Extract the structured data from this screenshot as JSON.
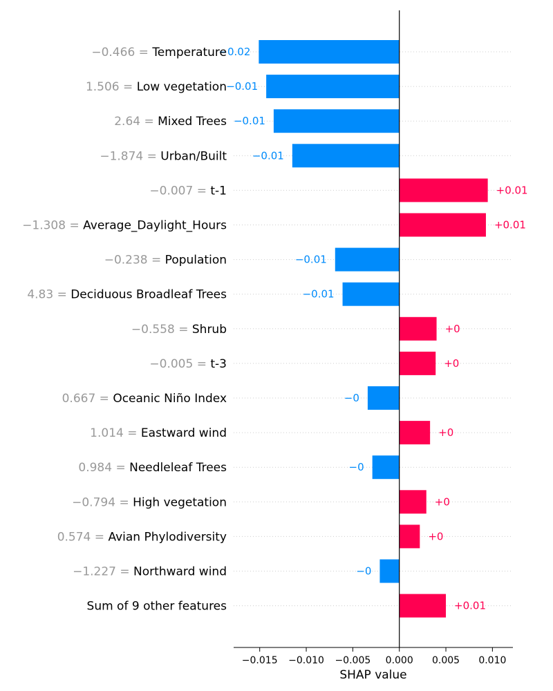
{
  "chart_data": {
    "type": "bar",
    "orientation": "horizontal",
    "xlabel": "SHAP value",
    "xlim": [
      -0.0178,
      0.0122
    ],
    "xticks": [
      -0.015,
      -0.01,
      -0.005,
      0.0,
      0.005,
      0.01
    ],
    "xtick_labels": [
      "−0.015",
      "−0.010",
      "−0.005",
      "0.000",
      "0.005",
      "0.010"
    ],
    "grid": "horizontal dotted",
    "colors": {
      "positive": "#ff0051",
      "negative": "#008bfb",
      "feature_value": "#999999",
      "feature_name": "#000000"
    },
    "rows": [
      {
        "feature_value": "−0.466 =",
        "feature": "Temperature",
        "value": -0.0151,
        "label": "−0.02"
      },
      {
        "feature_value": "1.506 =",
        "feature": "Low vegetation",
        "value": -0.0143,
        "label": "−0.01"
      },
      {
        "feature_value": "2.64 =",
        "feature": "Mixed Trees",
        "value": -0.0135,
        "label": "−0.01"
      },
      {
        "feature_value": "−1.874 =",
        "feature": "Urban/Built",
        "value": -0.0115,
        "label": "−0.01"
      },
      {
        "feature_value": "−0.007 =",
        "feature": "t-1",
        "value": 0.0095,
        "label": "+0.01"
      },
      {
        "feature_value": "−1.308 =",
        "feature": "Average_Daylight_Hours",
        "value": 0.0093,
        "label": "+0.01"
      },
      {
        "feature_value": "−0.238 =",
        "feature": "Population",
        "value": -0.0069,
        "label": "−0.01"
      },
      {
        "feature_value": "4.83 =",
        "feature": "Deciduous Broadleaf Trees",
        "value": -0.0061,
        "label": "−0.01"
      },
      {
        "feature_value": "−0.558 =",
        "feature": "Shrub",
        "value": 0.004,
        "label": "+0"
      },
      {
        "feature_value": "−0.005 =",
        "feature": "t-3",
        "value": 0.0039,
        "label": "+0"
      },
      {
        "feature_value": "0.667 =",
        "feature": "Oceanic Niño Index",
        "value": -0.0034,
        "label": "−0"
      },
      {
        "feature_value": "1.014 =",
        "feature": "Eastward wind",
        "value": 0.0033,
        "label": "+0"
      },
      {
        "feature_value": "0.984 =",
        "feature": "Needleleaf Trees",
        "value": -0.0029,
        "label": "−0"
      },
      {
        "feature_value": "−0.794 =",
        "feature": "High vegetation",
        "value": 0.0029,
        "label": "+0"
      },
      {
        "feature_value": "0.574 =",
        "feature": "Avian Phylodiversity",
        "value": 0.0022,
        "label": "+0"
      },
      {
        "feature_value": "−1.227 =",
        "feature": "Northward wind",
        "value": -0.0021,
        "label": "−0"
      },
      {
        "feature_value": "",
        "feature": "Sum of 9 other features",
        "value": 0.005,
        "label": "+0.01"
      }
    ]
  }
}
